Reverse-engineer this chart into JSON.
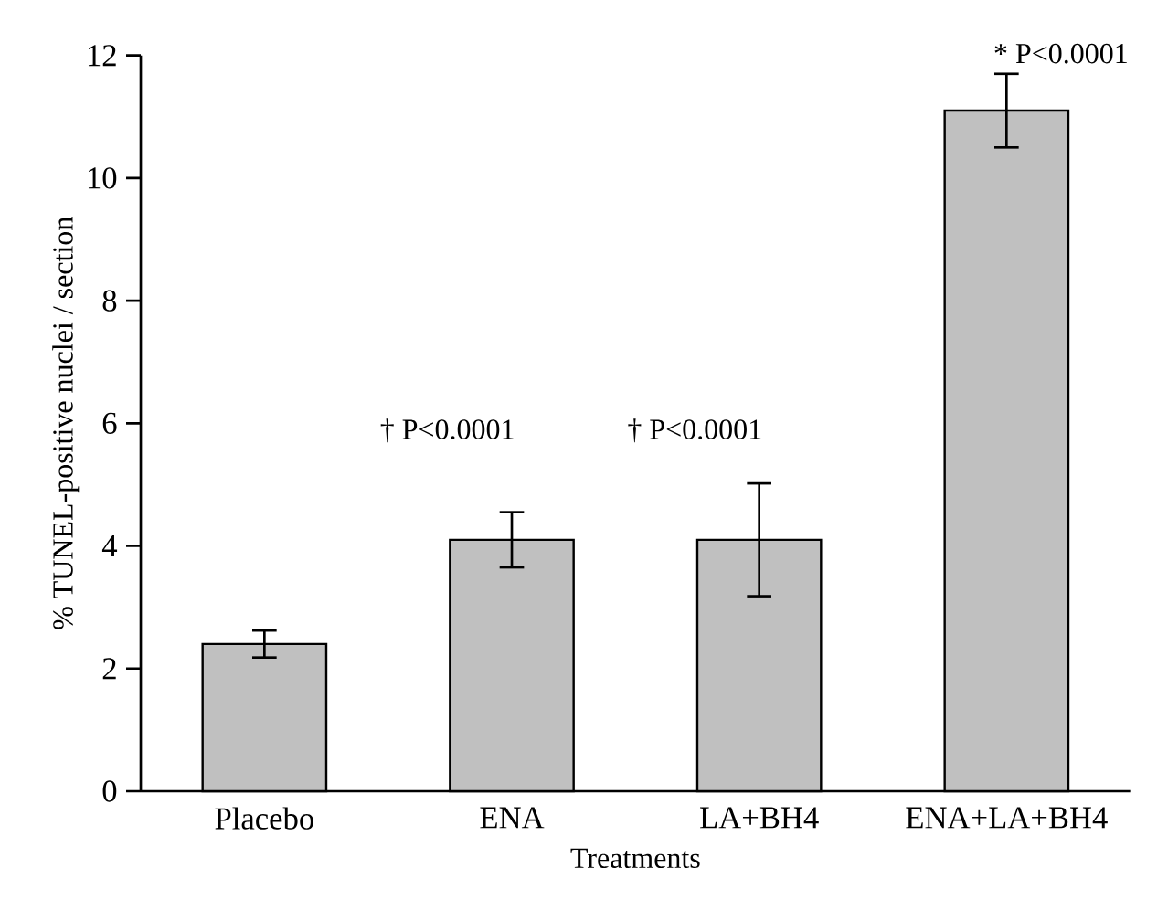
{
  "chart_data": {
    "type": "bar",
    "xlabel": "Treatments",
    "ylabel": "% TUNEL-positive nuclei / section",
    "categories": [
      "Placebo",
      "ENA",
      "LA+BH4",
      "ENA+LA+BH4"
    ],
    "values": [
      2.4,
      4.1,
      4.1,
      11.1
    ],
    "errors": [
      0.22,
      0.45,
      0.92,
      0.6
    ],
    "color": "#c0c0c0",
    "ylim": [
      0,
      12
    ],
    "yticks": [
      0,
      2,
      4,
      6,
      8,
      10,
      12
    ],
    "annotations": [
      "† P<0.0001",
      "† P<0.0001",
      "* P<0.0001"
    ]
  }
}
